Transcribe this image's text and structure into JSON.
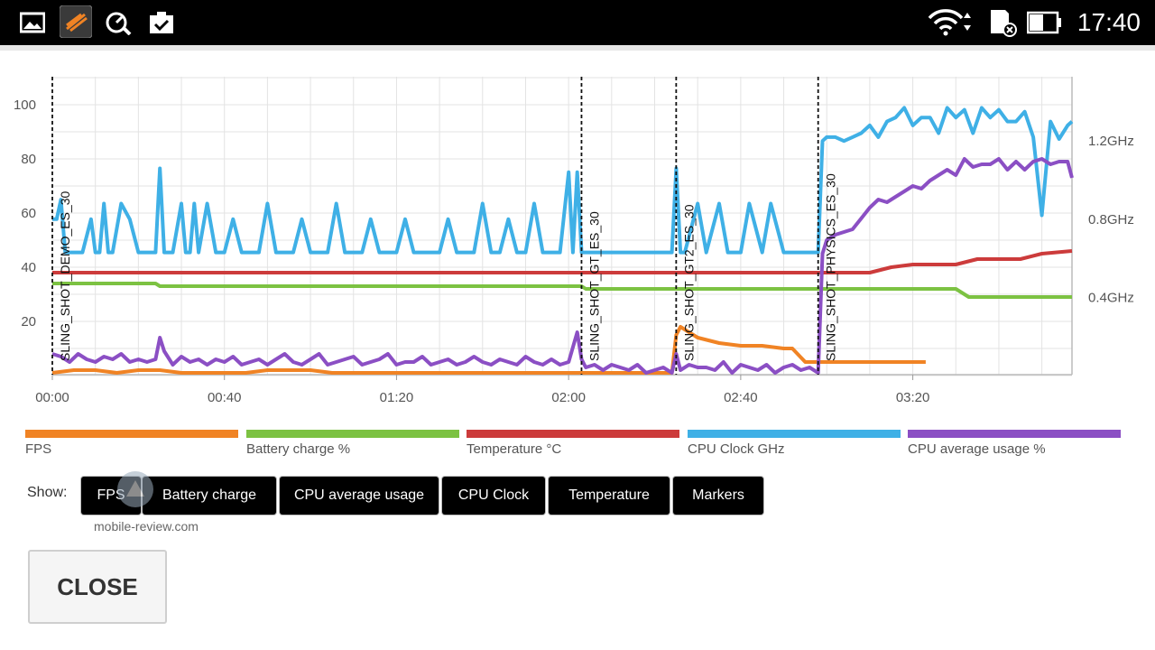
{
  "statusbar": {
    "time": "17:40",
    "icons": [
      "gallery-icon",
      "benchmark-app-icon",
      "speed-test-icon",
      "clipboard-check-icon",
      "wifi-icon",
      "sd-card-icon",
      "battery-icon"
    ]
  },
  "chart_data": {
    "type": "line",
    "x_tick_labels": [
      "00:00",
      "00:40",
      "01:20",
      "02:00",
      "02:40",
      "03:20"
    ],
    "x_ticks_seconds": [
      0,
      40,
      80,
      120,
      160,
      200
    ],
    "xlim_seconds": [
      0,
      237
    ],
    "left_axis": {
      "ticks": [
        20,
        40,
        60,
        80,
        100
      ],
      "ylim": [
        0,
        110
      ]
    },
    "right_axis": {
      "tick_labels": [
        "0.4GHz",
        "0.8GHz",
        "1.2GHz"
      ],
      "ticks": [
        0.4,
        0.8,
        1.2
      ],
      "ylim": [
        0,
        1.5
      ]
    },
    "grid": true,
    "markers": [
      {
        "label": "SLING_SHOT_DEMO_ES_30",
        "t": 0
      },
      {
        "label": "SLING_SHOT_GT_ES_30",
        "t": 123
      },
      {
        "label": "SLING_SHOT_GT2_ES_30",
        "t": 145
      },
      {
        "label": "SLING_SHOT_PHYSICS_ES_30",
        "t": 178
      }
    ],
    "series": [
      {
        "name": "FPS",
        "color": "#f08324",
        "axis": "left",
        "x": [
          0,
          5,
          10,
          15,
          20,
          25,
          30,
          35,
          40,
          45,
          50,
          55,
          60,
          65,
          70,
          75,
          80,
          85,
          90,
          95,
          100,
          105,
          110,
          115,
          120,
          123,
          125,
          130,
          135,
          140,
          144,
          145,
          146,
          150,
          155,
          160,
          165,
          170,
          172,
          175,
          178,
          180,
          185,
          190,
          195,
          200,
          203
        ],
        "y": [
          1,
          2,
          2,
          1,
          2,
          2,
          1,
          1,
          1,
          1,
          2,
          2,
          2,
          1,
          1,
          1,
          1,
          1,
          1,
          1,
          1,
          1,
          1,
          1,
          1,
          1,
          1,
          1,
          1,
          1,
          1,
          15,
          18,
          14,
          12,
          11,
          11,
          10,
          10,
          5,
          5,
          5,
          5,
          5,
          5,
          5,
          5
        ]
      },
      {
        "name": "Battery charge %",
        "color": "#7cc242",
        "axis": "left",
        "x": [
          0,
          24,
          25,
          80,
          123,
          124,
          178,
          210,
          213,
          237
        ],
        "y": [
          34,
          34,
          33,
          33,
          33,
          32,
          32,
          32,
          29,
          29
        ]
      },
      {
        "name": "Temperature °C",
        "color": "#cc3b3b",
        "axis": "left",
        "x": [
          0,
          24,
          25,
          80,
          115,
          123,
          170,
          178,
          190,
          195,
          200,
          210,
          215,
          225,
          230,
          237
        ],
        "y": [
          38,
          38,
          38,
          38,
          38,
          38,
          38,
          38,
          38,
          40,
          41,
          41,
          43,
          43,
          45,
          46
        ]
      },
      {
        "name": "CPU Clock GHz",
        "color": "#3fb0e6",
        "axis": "right",
        "x": [
          0,
          1,
          2,
          3,
          5,
          7,
          9,
          10,
          11,
          12,
          13,
          14,
          16,
          18,
          20,
          22,
          24,
          25,
          26,
          28,
          30,
          31,
          32,
          33,
          34,
          36,
          38,
          40,
          42,
          44,
          46,
          48,
          50,
          52,
          54,
          56,
          58,
          60,
          62,
          64,
          66,
          68,
          70,
          72,
          74,
          76,
          78,
          80,
          82,
          84,
          86,
          88,
          90,
          92,
          94,
          96,
          98,
          100,
          102,
          104,
          106,
          108,
          110,
          112,
          114,
          116,
          118,
          120,
          121,
          122,
          123,
          124,
          126,
          128,
          130,
          135,
          140,
          144,
          145,
          146,
          147,
          150,
          152,
          155,
          157,
          160,
          162,
          165,
          167,
          170,
          172,
          175,
          178,
          179,
          180,
          182,
          184,
          186,
          188,
          190,
          192,
          194,
          196,
          198,
          200,
          202,
          204,
          206,
          208,
          210,
          212,
          214,
          216,
          218,
          220,
          222,
          224,
          226,
          228,
          230,
          232,
          234,
          236,
          237
        ],
        "y": [
          0.8,
          0.8,
          0.9,
          0.63,
          0.63,
          0.63,
          0.8,
          0.63,
          0.63,
          0.88,
          0.63,
          0.63,
          0.88,
          0.8,
          0.63,
          0.63,
          0.63,
          1.06,
          0.63,
          0.63,
          0.88,
          0.63,
          0.63,
          0.88,
          0.63,
          0.88,
          0.63,
          0.63,
          0.8,
          0.63,
          0.63,
          0.63,
          0.88,
          0.63,
          0.63,
          0.63,
          0.8,
          0.63,
          0.63,
          0.63,
          0.88,
          0.63,
          0.63,
          0.63,
          0.8,
          0.63,
          0.63,
          0.63,
          0.8,
          0.63,
          0.63,
          0.63,
          0.63,
          0.8,
          0.63,
          0.63,
          0.63,
          0.88,
          0.63,
          0.63,
          0.8,
          0.63,
          0.63,
          0.88,
          0.63,
          0.63,
          0.63,
          1.04,
          0.63,
          1.04,
          0.63,
          0.63,
          0.63,
          0.63,
          0.63,
          0.63,
          0.63,
          0.63,
          1.06,
          0.63,
          0.63,
          0.88,
          0.63,
          0.88,
          0.63,
          0.63,
          0.88,
          0.63,
          0.88,
          0.63,
          0.63,
          0.63,
          0.63,
          1.2,
          1.22,
          1.22,
          1.2,
          1.22,
          1.24,
          1.28,
          1.22,
          1.3,
          1.32,
          1.37,
          1.28,
          1.32,
          1.32,
          1.24,
          1.37,
          1.32,
          1.36,
          1.24,
          1.37,
          1.32,
          1.36,
          1.3,
          1.3,
          1.35,
          1.22,
          0.82,
          1.3,
          1.21,
          1.28,
          1.3
        ]
      },
      {
        "name": "CPU average usage %",
        "color": "#8b4fc4",
        "axis": "left",
        "x": [
          0,
          2,
          4,
          6,
          8,
          10,
          12,
          14,
          16,
          18,
          20,
          22,
          24,
          25,
          26,
          28,
          30,
          32,
          34,
          36,
          38,
          40,
          42,
          44,
          46,
          48,
          50,
          52,
          54,
          56,
          58,
          60,
          62,
          64,
          66,
          68,
          70,
          72,
          74,
          76,
          78,
          80,
          82,
          84,
          86,
          88,
          90,
          92,
          94,
          96,
          98,
          100,
          102,
          104,
          106,
          108,
          110,
          112,
          114,
          116,
          118,
          120,
          122,
          123,
          124,
          126,
          128,
          130,
          132,
          134,
          136,
          138,
          140,
          142,
          144,
          145,
          146,
          148,
          150,
          152,
          154,
          156,
          158,
          160,
          162,
          164,
          166,
          168,
          170,
          172,
          174,
          176,
          178,
          179,
          180,
          182,
          184,
          186,
          188,
          190,
          192,
          194,
          196,
          198,
          200,
          202,
          204,
          206,
          208,
          210,
          212,
          214,
          216,
          218,
          220,
          222,
          224,
          226,
          228,
          230,
          232,
          234,
          236,
          237
        ],
        "y": [
          8,
          7,
          5,
          8,
          6,
          5,
          7,
          6,
          8,
          5,
          6,
          5,
          6,
          14,
          9,
          4,
          7,
          5,
          6,
          4,
          6,
          5,
          7,
          4,
          5,
          6,
          4,
          6,
          8,
          5,
          4,
          6,
          8,
          4,
          5,
          6,
          7,
          4,
          5,
          6,
          8,
          4,
          5,
          5,
          7,
          4,
          5,
          6,
          4,
          5,
          7,
          5,
          4,
          6,
          5,
          4,
          7,
          5,
          4,
          6,
          4,
          5,
          16,
          6,
          3,
          4,
          2,
          4,
          3,
          2,
          4,
          1,
          2,
          3,
          1,
          8,
          2,
          4,
          3,
          3,
          2,
          5,
          1,
          4,
          3,
          2,
          4,
          1,
          3,
          4,
          2,
          3,
          1,
          45,
          50,
          52,
          53,
          54,
          58,
          62,
          65,
          64,
          66,
          68,
          70,
          69,
          72,
          74,
          76,
          74,
          80,
          77,
          78,
          78,
          80,
          76,
          79,
          76,
          79,
          80,
          78,
          79,
          79,
          73
        ]
      }
    ]
  },
  "legend": [
    {
      "label": "FPS",
      "color": "#f08324"
    },
    {
      "label": "Battery charge %",
      "color": "#7cc242"
    },
    {
      "label": "Temperature °C",
      "color": "#cc3b3b"
    },
    {
      "label": "CPU Clock GHz",
      "color": "#3fb0e6"
    },
    {
      "label": "CPU average usage %",
      "color": "#8b4fc4"
    }
  ],
  "toggles": {
    "show_label": "Show:",
    "buttons": [
      "FPS",
      "Battery charge",
      "CPU average usage",
      "CPU Clock",
      "Temperature",
      "Markers"
    ]
  },
  "watermark": "mobile-review.com",
  "close_label": "CLOSE"
}
